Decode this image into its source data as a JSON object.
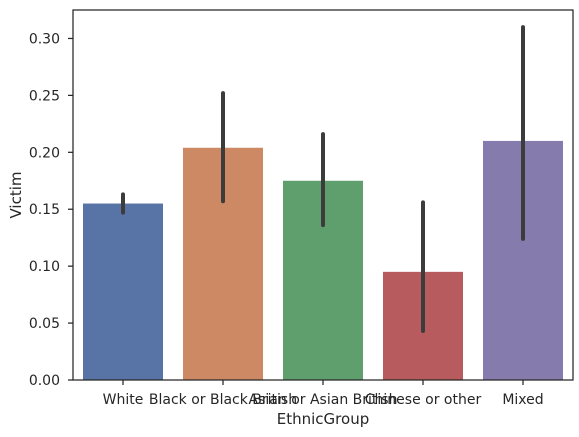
{
  "chart_data": {
    "type": "bar",
    "xlabel": "EthnicGroup",
    "ylabel": "Victim",
    "ylim": [
      0,
      0.325
    ],
    "yticks": [
      "0.00",
      "0.05",
      "0.10",
      "0.15",
      "0.20",
      "0.25",
      "0.30"
    ],
    "categories": [
      "White",
      "Black or Black British",
      "Asian or Asian British",
      "Chinese or other",
      "Mixed"
    ],
    "values": [
      0.155,
      0.204,
      0.175,
      0.095,
      0.21
    ],
    "ci_low": [
      0.147,
      0.157,
      0.136,
      0.043,
      0.124
    ],
    "ci_high": [
      0.163,
      0.252,
      0.216,
      0.156,
      0.31
    ],
    "colors": [
      "#5874a6",
      "#cd8963",
      "#5f9f6e",
      "#b85b5e",
      "#857bad"
    ],
    "errorbar_color": "#3c3c3c",
    "grid": false
  }
}
